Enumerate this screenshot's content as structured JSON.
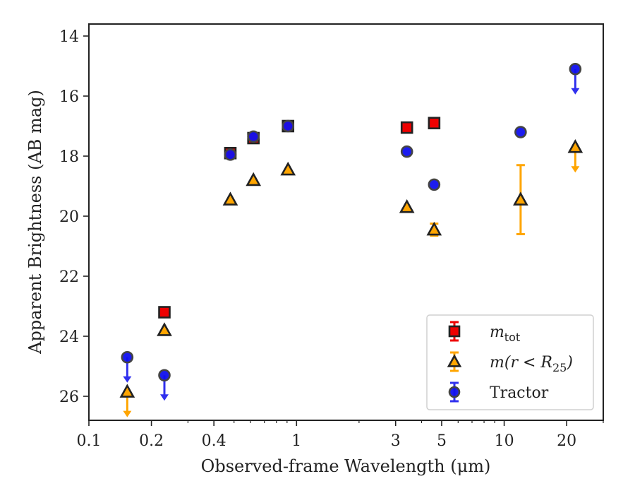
{
  "chart_data": {
    "type": "scatter",
    "title": "",
    "xlabel": "Observed-frame Wavelength (μm)",
    "ylabel": "Apparent Brightness (AB mag)",
    "xscale": "log",
    "xlim": [
      0.1,
      30
    ],
    "ylim": [
      26.8,
      13.6
    ],
    "y_inverted": true,
    "grid": false,
    "legend_placement": "lower-right",
    "x_ticks": [
      {
        "value": 0.1,
        "label": "0.1"
      },
      {
        "value": 0.2,
        "label": "0.2"
      },
      {
        "value": 0.4,
        "label": "0.4"
      },
      {
        "value": 1,
        "label": "1"
      },
      {
        "value": 3,
        "label": "3"
      },
      {
        "value": 5,
        "label": "5"
      },
      {
        "value": 10,
        "label": "10"
      },
      {
        "value": 20,
        "label": "20"
      }
    ],
    "y_ticks": [
      {
        "value": 14,
        "label": "14"
      },
      {
        "value": 16,
        "label": "16"
      },
      {
        "value": 18,
        "label": "18"
      },
      {
        "value": 20,
        "label": "20"
      },
      {
        "value": 22,
        "label": "22"
      },
      {
        "value": 24,
        "label": "24"
      },
      {
        "value": 26,
        "label": "26"
      }
    ],
    "series": [
      {
        "name": "m_tot",
        "legend_main": "m",
        "legend_sub": "tot",
        "marker": "square",
        "color": "#ee0000",
        "error_color": "#ee0000",
        "points": [
          {
            "x": 0.231,
            "y": 23.2
          },
          {
            "x": 0.48,
            "y": 17.9
          },
          {
            "x": 0.62,
            "y": 17.4
          },
          {
            "x": 0.91,
            "y": 17.0
          },
          {
            "x": 3.4,
            "y": 17.05
          },
          {
            "x": 4.6,
            "y": 16.9
          }
        ]
      },
      {
        "name": "m(r < R25)",
        "legend_main": "m(r < R",
        "legend_sub": "25",
        "legend_tail": ")",
        "marker": "triangle",
        "color": "#ffa500",
        "error_color": "#ffa500",
        "points": [
          {
            "x": 0.153,
            "y": 25.85,
            "upper_limit": true
          },
          {
            "x": 0.231,
            "y": 23.8
          },
          {
            "x": 0.48,
            "y": 19.45
          },
          {
            "x": 0.62,
            "y": 18.8
          },
          {
            "x": 0.91,
            "y": 18.45
          },
          {
            "x": 3.4,
            "y": 19.7
          },
          {
            "x": 4.6,
            "y": 20.45,
            "err": 0.2
          },
          {
            "x": 12,
            "y": 19.45,
            "err": 1.15
          },
          {
            "x": 22,
            "y": 17.7,
            "upper_limit": true
          }
        ]
      },
      {
        "name": "Tractor",
        "legend_main": "Tractor",
        "marker": "circle",
        "color": "#1010ee",
        "error_color": "#3030ee",
        "points": [
          {
            "x": 0.153,
            "y": 24.7,
            "upper_limit": true
          },
          {
            "x": 0.231,
            "y": 25.3,
            "upper_limit": true
          },
          {
            "x": 0.48,
            "y": 17.95
          },
          {
            "x": 0.62,
            "y": 17.35
          },
          {
            "x": 0.91,
            "y": 17.0
          },
          {
            "x": 3.4,
            "y": 17.85
          },
          {
            "x": 4.6,
            "y": 18.95
          },
          {
            "x": 12,
            "y": 17.2
          },
          {
            "x": 22,
            "y": 15.1,
            "upper_limit": true
          }
        ]
      }
    ]
  }
}
